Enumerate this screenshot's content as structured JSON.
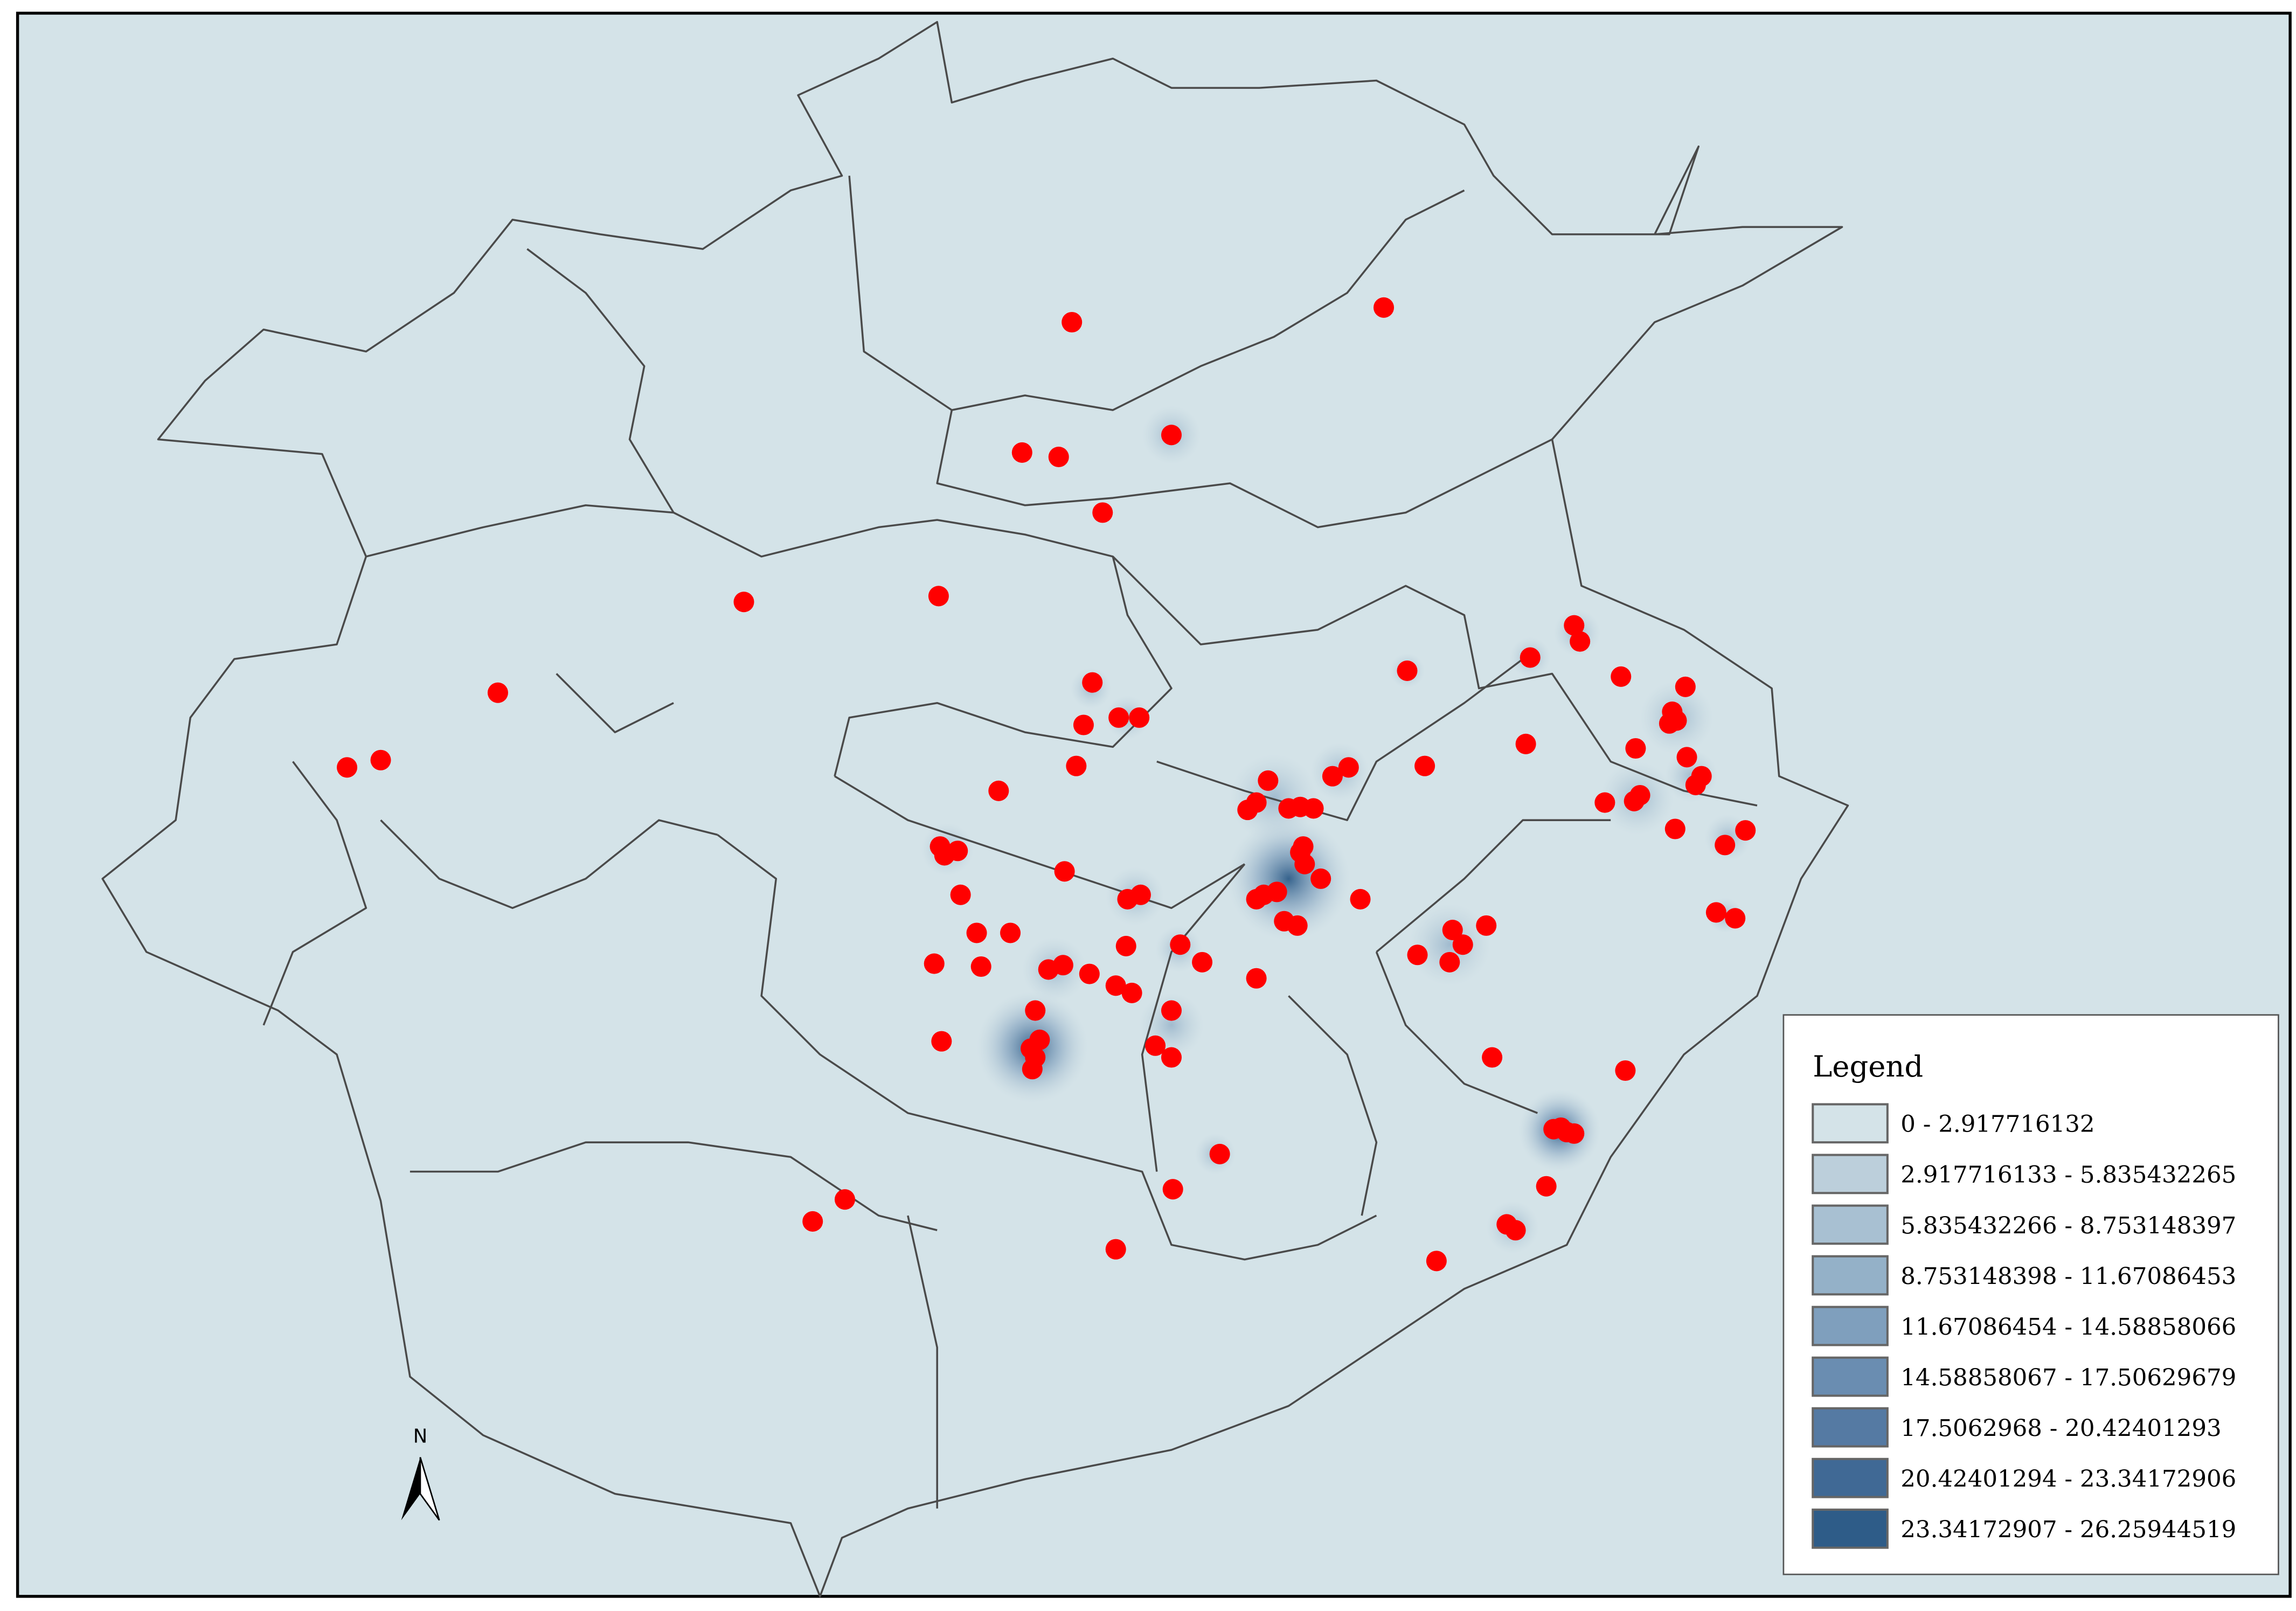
{
  "legend": {
    "title": "Legend",
    "items": [
      {
        "label": "0 - 2.917716132",
        "color": "#d4e3e8"
      },
      {
        "label": "2.917716133 - 5.835432265",
        "color": "#bccfdb"
      },
      {
        "label": "5.835432266 - 8.753148397",
        "color": "#a8c0d2"
      },
      {
        "label": "8.753148398 - 11.67086453",
        "color": "#94b1c8"
      },
      {
        "label": "11.67086454 - 14.58858066",
        "color": "#7f9fbd"
      },
      {
        "label": "14.58858067 - 17.50629679",
        "color": "#6a8db1"
      },
      {
        "label": "17.5062968 - 20.42401293",
        "color": "#557aa3"
      },
      {
        "label": "20.42401294 - 23.34172906",
        "color": "#406995"
      },
      {
        "label": "23.34172907 - 26.25944519",
        "color": "#2e5c88"
      }
    ]
  },
  "north_arrow": {
    "label": "N"
  }
}
